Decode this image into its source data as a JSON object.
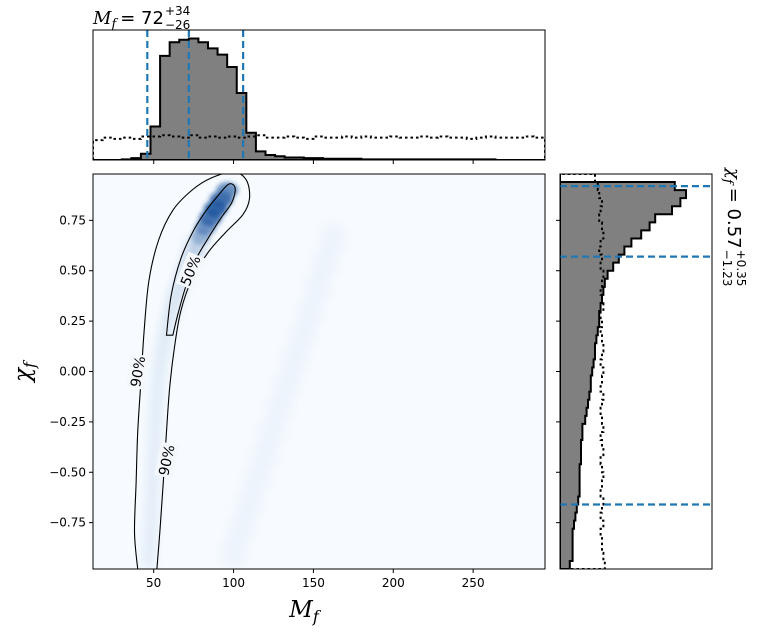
{
  "chart_data": {
    "type": "corner",
    "main_panel": {
      "kind": "2d-density-with-credible-contours",
      "xlabel_base": "M",
      "xlabel_sub": "f",
      "ylabel_base": "χ",
      "ylabel_sub": "f",
      "xlim": [
        12,
        295
      ],
      "ylim": [
        -0.98,
        0.98
      ],
      "xticks": [
        "50",
        "100",
        "150",
        "200",
        "250"
      ],
      "yticks": [
        "0.75",
        "0.50",
        "0.25",
        "0.00",
        "−0.25",
        "−0.50",
        "−0.75"
      ],
      "colormap": "Blues",
      "density_peak": {
        "x": 82,
        "y": 0.82
      },
      "contours": [
        {
          "level": "90%",
          "points": [
            [
              40,
              -0.98
            ],
            [
              38,
              -0.8
            ],
            [
              39,
              -0.55
            ],
            [
              40,
              -0.3
            ],
            [
              42,
              -0.05
            ],
            [
              44,
              0.2
            ],
            [
              47,
              0.45
            ],
            [
              53,
              0.65
            ],
            [
              62,
              0.8
            ],
            [
              74,
              0.9
            ],
            [
              86,
              0.96
            ],
            [
              100,
              0.99
            ],
            [
              108,
              0.95
            ],
            [
              110,
              0.86
            ],
            [
              106,
              0.78
            ],
            [
              95,
              0.69
            ],
            [
              84,
              0.59
            ],
            [
              74,
              0.46
            ],
            [
              67,
              0.3
            ],
            [
              63,
              0.12
            ],
            [
              60,
              -0.08
            ],
            [
              58,
              -0.3
            ],
            [
              56,
              -0.55
            ],
            [
              54,
              -0.78
            ],
            [
              52,
              -0.98
            ]
          ],
          "labels": [
            {
              "text": "90%",
              "x": 40,
              "y": 0.0
            },
            {
              "text": "90%",
              "x": 58,
              "y": -0.44
            }
          ]
        },
        {
          "level": "50%",
          "points": [
            [
              58,
              0.18
            ],
            [
              61,
              0.38
            ],
            [
              67,
              0.56
            ],
            [
              75,
              0.7
            ],
            [
              83,
              0.8
            ],
            [
              90,
              0.87
            ],
            [
              97,
              0.93
            ],
            [
              101,
              0.91
            ],
            [
              99,
              0.84
            ],
            [
              92,
              0.76
            ],
            [
              84,
              0.66
            ],
            [
              76,
              0.55
            ],
            [
              70,
              0.42
            ],
            [
              65,
              0.28
            ],
            [
              62,
              0.18
            ]
          ],
          "labels": [
            {
              "text": "50%",
              "x": 73,
              "y": 0.5
            }
          ]
        }
      ]
    },
    "top_panel": {
      "kind": "histogram",
      "title_base": "M",
      "title_sub": "f",
      "title_median": "= 72",
      "title_upper": "+34",
      "title_lower": "−26",
      "median": 72,
      "lower": 46,
      "upper": 106,
      "bin_edges": [
        12,
        18,
        24,
        30,
        36,
        42,
        48,
        54,
        60,
        66,
        72,
        78,
        84,
        90,
        96,
        102,
        108,
        114,
        120,
        126,
        132,
        138,
        144,
        150,
        156,
        162,
        168,
        174,
        180,
        186,
        192,
        198,
        204,
        210,
        216,
        222,
        228,
        234,
        240,
        246,
        252,
        258,
        264,
        270,
        276,
        282,
        288,
        295
      ],
      "posterior_counts": [
        0,
        0,
        0,
        0.5,
        1.5,
        5,
        27,
        84,
        95,
        97,
        98,
        95,
        90,
        85,
        75,
        54,
        22,
        7,
        4,
        3,
        2,
        2,
        1.5,
        1.5,
        1,
        1,
        1,
        1,
        0.5,
        0.5,
        0.5,
        0.5,
        0.5,
        0.5,
        0.5,
        0.5,
        0.5,
        0.5,
        0.5,
        0.5,
        0.5,
        0.5,
        0,
        0,
        0,
        0,
        0
      ],
      "prior_counts": [
        16,
        18,
        17,
        18,
        17,
        19,
        19,
        20,
        19,
        18,
        20,
        18,
        19,
        18,
        19,
        18,
        19,
        20,
        18,
        18,
        19,
        18,
        17,
        19,
        18,
        18,
        19,
        18,
        19,
        18,
        18,
        19,
        18,
        18,
        19,
        18,
        19,
        18,
        18,
        17,
        18,
        19,
        18,
        18,
        18,
        19,
        18
      ],
      "ymax": 100
    },
    "right_panel": {
      "kind": "histogram-horizontal",
      "title_base": "χ",
      "title_sub": "f",
      "title_median": "= 0.57",
      "title_upper": "+0.35",
      "title_lower": "−1.23",
      "median": 0.57,
      "lower": -0.66,
      "upper": 0.92,
      "bin_edges": [
        -0.98,
        -0.94,
        -0.9,
        -0.86,
        -0.82,
        -0.78,
        -0.74,
        -0.7,
        -0.66,
        -0.62,
        -0.58,
        -0.54,
        -0.5,
        -0.46,
        -0.42,
        -0.38,
        -0.34,
        -0.3,
        -0.26,
        -0.22,
        -0.18,
        -0.14,
        -0.1,
        -0.06,
        -0.02,
        0.02,
        0.06,
        0.1,
        0.14,
        0.18,
        0.22,
        0.26,
        0.3,
        0.34,
        0.38,
        0.42,
        0.46,
        0.5,
        0.54,
        0.58,
        0.62,
        0.66,
        0.7,
        0.74,
        0.78,
        0.82,
        0.86,
        0.9,
        0.94,
        0.98
      ],
      "posterior_counts": [
        7,
        9,
        9,
        9,
        9,
        10,
        11,
        12,
        13,
        14,
        14,
        14,
        14,
        15,
        15,
        15,
        16,
        16,
        18,
        19,
        20,
        21,
        22,
        22,
        23,
        24,
        25,
        25,
        26,
        27,
        28,
        28,
        29,
        30,
        31,
        32,
        34,
        38,
        42,
        46,
        51,
        58,
        64,
        68,
        80,
        86,
        90,
        82,
        0
      ],
      "prior_counts": [
        32,
        31,
        30,
        30,
        29,
        31,
        29,
        30,
        31,
        29,
        30,
        31,
        30,
        29,
        31,
        30,
        29,
        31,
        30,
        29,
        30,
        31,
        29,
        30,
        31,
        29,
        30,
        31,
        30,
        29,
        30,
        29,
        31,
        30,
        29,
        30,
        31,
        29,
        30,
        28,
        29,
        31,
        30,
        28,
        29,
        30,
        28,
        27,
        25
      ],
      "xmax": 100
    },
    "colors": {
      "posterior_fill": "#808080",
      "posterior_edge": "#000000",
      "prior_line": "#000000",
      "quantile_line": "#1f77b4",
      "contour_line": "#000000"
    }
  }
}
